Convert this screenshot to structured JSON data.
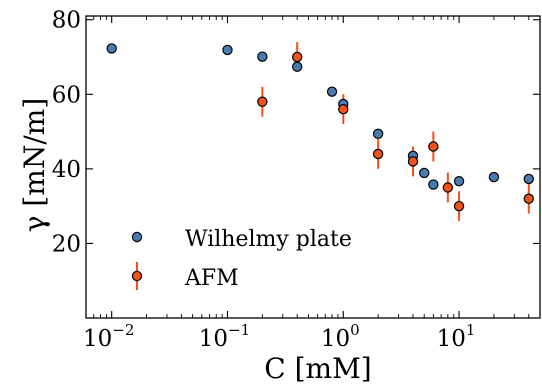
{
  "chart_data": {
    "type": "scatter",
    "xscale": "log",
    "xlim": [
      0.006,
      50
    ],
    "ylim": [
      0,
      81
    ],
    "xlabel": "C [mM]",
    "ylabel": "γ [mN/m]",
    "x_ticks": [
      {
        "value": 0.01,
        "base": "10",
        "exp": "−2"
      },
      {
        "value": 0.1,
        "base": "10",
        "exp": "−1"
      },
      {
        "value": 1,
        "base": "10",
        "exp": "0"
      },
      {
        "value": 10,
        "base": "10",
        "exp": "1"
      }
    ],
    "y_ticks": [
      20,
      40,
      60,
      80
    ],
    "grid": false,
    "legend_position": "lower-left",
    "series": [
      {
        "name": "Wilhelmy plate",
        "color": "#4a7bb0",
        "edge": "#000000",
        "points": [
          {
            "x": 0.01,
            "y": 72.3
          },
          {
            "x": 0.1,
            "y": 71.9
          },
          {
            "x": 0.2,
            "y": 70.1
          },
          {
            "x": 0.4,
            "y": 67.4
          },
          {
            "x": 0.8,
            "y": 60.7
          },
          {
            "x": 1.0,
            "y": 57.4
          },
          {
            "x": 2.0,
            "y": 49.4
          },
          {
            "x": 4.0,
            "y": 43.5
          },
          {
            "x": 5.0,
            "y": 38.9
          },
          {
            "x": 6.0,
            "y": 35.8
          },
          {
            "x": 10.0,
            "y": 36.7
          },
          {
            "x": 20.0,
            "y": 37.8
          },
          {
            "x": 40.0,
            "y": 37.3
          }
        ]
      },
      {
        "name": "AFM",
        "color": "#f0521c",
        "edge": "#000000",
        "errcolor": "#f0521c",
        "points": [
          {
            "x": 0.2,
            "y": 58.0,
            "err": 4.0
          },
          {
            "x": 0.4,
            "y": 70.0,
            "err": 4.0
          },
          {
            "x": 1.0,
            "y": 56.0,
            "err": 4.0
          },
          {
            "x": 2.0,
            "y": 44.0,
            "err": 4.0
          },
          {
            "x": 4.0,
            "y": 42.0,
            "err": 4.0
          },
          {
            "x": 6.0,
            "y": 46.0,
            "err": 4.0
          },
          {
            "x": 8.0,
            "y": 35.0,
            "err": 4.0
          },
          {
            "x": 10.0,
            "y": 30.0,
            "err": 4.0
          },
          {
            "x": 40.0,
            "y": 32.0,
            "err": 4.0
          }
        ]
      }
    ]
  }
}
